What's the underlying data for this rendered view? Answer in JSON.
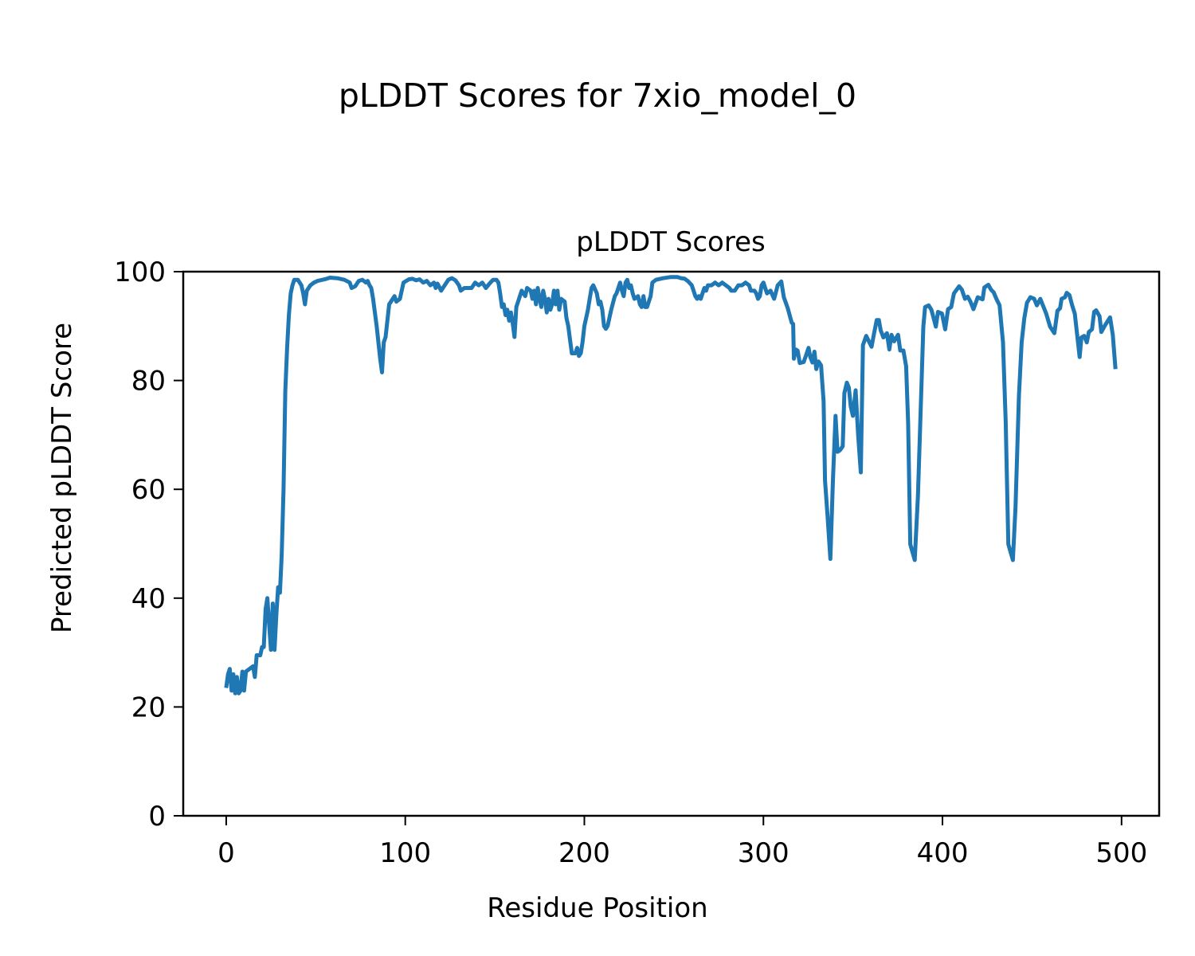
{
  "figure_title": "pLDDT Scores for 7xio_model_0",
  "chart_data": {
    "type": "line",
    "title": "pLDDT Scores",
    "xlabel": "Residue Position",
    "ylabel": "Predicted pLDDT Score",
    "xlim": [
      -24,
      521
    ],
    "ylim": [
      0,
      100
    ],
    "xticks": [
      0,
      100,
      200,
      300,
      400,
      500
    ],
    "yticks": [
      0,
      20,
      40,
      60,
      80,
      100
    ],
    "grid": false,
    "color": "#1f77b4",
    "points": [
      [
        0,
        23.5
      ],
      [
        1,
        26
      ],
      [
        2,
        27
      ],
      [
        3,
        23
      ],
      [
        4,
        26
      ],
      [
        5,
        22.5
      ],
      [
        6,
        25.5
      ],
      [
        7,
        22.5
      ],
      [
        8,
        23
      ],
      [
        9,
        26.5
      ],
      [
        10,
        23
      ],
      [
        11,
        26.5
      ],
      [
        13,
        27
      ],
      [
        15,
        27.5
      ],
      [
        16,
        25.5
      ],
      [
        17,
        29.5
      ],
      [
        19,
        29.5
      ],
      [
        20,
        31
      ],
      [
        21,
        31
      ],
      [
        22,
        38
      ],
      [
        23,
        40
      ],
      [
        24,
        35
      ],
      [
        25,
        30.5
      ],
      [
        26,
        39
      ],
      [
        27,
        30.5
      ],
      [
        28,
        37
      ],
      [
        29,
        42
      ],
      [
        30,
        41
      ],
      [
        31,
        48
      ],
      [
        32,
        60
      ],
      [
        33,
        78
      ],
      [
        34,
        86
      ],
      [
        35,
        92
      ],
      [
        36,
        96
      ],
      [
        37,
        97.5
      ],
      [
        38,
        98.5
      ],
      [
        40,
        98.5
      ],
      [
        42,
        97.5
      ],
      [
        43,
        96
      ],
      [
        44,
        94
      ],
      [
        45,
        96.5
      ],
      [
        47,
        97.5
      ],
      [
        49,
        98
      ],
      [
        51,
        98.3
      ],
      [
        55,
        98.6
      ],
      [
        58,
        98.9
      ],
      [
        62,
        98.8
      ],
      [
        66,
        98.5
      ],
      [
        69,
        98
      ],
      [
        70,
        97
      ],
      [
        72,
        97.3
      ],
      [
        74,
        98.3
      ],
      [
        76,
        98.5
      ],
      [
        78,
        98
      ],
      [
        79,
        98.3
      ],
      [
        80,
        97.5
      ],
      [
        81,
        97
      ],
      [
        82,
        95
      ],
      [
        84,
        90
      ],
      [
        86,
        84
      ],
      [
        87,
        81.5
      ],
      [
        88,
        87
      ],
      [
        89,
        88
      ],
      [
        91,
        94
      ],
      [
        93,
        95
      ],
      [
        94,
        95.5
      ],
      [
        95,
        94.5
      ],
      [
        97,
        95
      ],
      [
        99,
        98
      ],
      [
        102,
        98.6
      ],
      [
        104,
        98.7
      ],
      [
        106,
        98.4
      ],
      [
        108,
        98.6
      ],
      [
        110,
        98
      ],
      [
        112,
        98.3
      ],
      [
        114,
        97.5
      ],
      [
        116,
        98
      ],
      [
        117,
        97
      ],
      [
        118,
        97.8
      ],
      [
        120,
        96.5
      ],
      [
        121,
        97
      ],
      [
        122,
        97.5
      ],
      [
        124,
        98.5
      ],
      [
        126,
        98.8
      ],
      [
        128,
        98.4
      ],
      [
        130,
        97.5
      ],
      [
        131,
        96.5
      ],
      [
        133,
        97
      ],
      [
        135,
        97
      ],
      [
        137,
        97
      ],
      [
        139,
        98
      ],
      [
        141,
        97.5
      ],
      [
        143,
        98
      ],
      [
        145,
        97
      ],
      [
        147,
        97.8
      ],
      [
        149,
        98.5
      ],
      [
        151,
        98.5
      ],
      [
        152,
        98
      ],
      [
        153,
        96
      ],
      [
        154,
        93.5
      ],
      [
        155,
        94
      ],
      [
        156,
        92
      ],
      [
        157,
        93
      ],
      [
        158,
        91
      ],
      [
        159,
        92.5
      ],
      [
        160,
        90.5
      ],
      [
        161,
        88
      ],
      [
        162,
        93.5
      ],
      [
        164,
        95.5
      ],
      [
        165,
        96.5
      ],
      [
        166,
        96
      ],
      [
        167,
        95.5
      ],
      [
        168,
        97
      ],
      [
        170,
        96.5
      ],
      [
        171,
        95
      ],
      [
        172,
        96.5
      ],
      [
        173,
        94
      ],
      [
        174,
        97
      ],
      [
        175,
        95
      ],
      [
        176,
        93.5
      ],
      [
        177,
        96.5
      ],
      [
        178,
        95
      ],
      [
        179,
        92.5
      ],
      [
        180,
        95
      ],
      [
        181,
        93
      ],
      [
        182,
        94
      ],
      [
        183,
        96.5
      ],
      [
        184,
        94
      ],
      [
        185,
        96.5
      ],
      [
        186,
        93
      ],
      [
        187,
        95
      ],
      [
        189,
        94.5
      ],
      [
        190,
        91.5
      ],
      [
        191,
        90
      ],
      [
        192,
        87.5
      ],
      [
        193,
        85
      ],
      [
        195,
        85
      ],
      [
        196,
        86
      ],
      [
        197,
        84.5
      ],
      [
        198,
        85
      ],
      [
        199,
        87
      ],
      [
        200,
        90
      ],
      [
        202,
        93
      ],
      [
        203,
        95
      ],
      [
        204,
        97
      ],
      [
        205,
        97.5
      ],
      [
        207,
        96
      ],
      [
        208,
        94
      ],
      [
        209,
        94.5
      ],
      [
        210,
        93
      ],
      [
        211,
        90
      ],
      [
        212,
        89.5
      ],
      [
        213,
        90
      ],
      [
        215,
        93
      ],
      [
        217,
        95.5
      ],
      [
        218,
        96
      ],
      [
        220,
        98
      ],
      [
        221,
        96.5
      ],
      [
        222,
        95.5
      ],
      [
        223,
        98
      ],
      [
        224,
        98.5
      ],
      [
        225,
        97
      ],
      [
        226,
        97.5
      ],
      [
        227,
        96
      ],
      [
        228,
        95
      ],
      [
        230,
        95.5
      ],
      [
        231,
        94
      ],
      [
        232,
        93.5
      ],
      [
        233,
        95.5
      ],
      [
        234,
        93.5
      ],
      [
        235,
        93.5
      ],
      [
        237,
        95.5
      ],
      [
        238,
        98
      ],
      [
        240,
        98.5
      ],
      [
        244,
        98.8
      ],
      [
        248,
        99
      ],
      [
        252,
        99
      ],
      [
        254,
        98.8
      ],
      [
        256,
        98.7
      ],
      [
        258,
        98.2
      ],
      [
        260,
        97.5
      ],
      [
        261,
        96.5
      ],
      [
        262,
        95.5
      ],
      [
        263,
        95
      ],
      [
        264,
        95.5
      ],
      [
        265,
        95
      ],
      [
        266,
        96
      ],
      [
        267,
        97
      ],
      [
        268,
        96.5
      ],
      [
        269,
        97.5
      ],
      [
        271,
        97.5
      ],
      [
        273,
        98
      ],
      [
        275,
        97.5
      ],
      [
        277,
        98
      ],
      [
        279,
        97.5
      ],
      [
        281,
        97
      ],
      [
        282,
        96.5
      ],
      [
        284,
        96.5
      ],
      [
        286,
        97.5
      ],
      [
        288,
        97.5
      ],
      [
        290,
        98
      ],
      [
        292,
        97.5
      ],
      [
        293,
        96.5
      ],
      [
        295,
        96.5
      ],
      [
        296,
        96
      ],
      [
        297,
        95
      ],
      [
        298,
        95.5
      ],
      [
        299,
        97.5
      ],
      [
        300,
        98
      ],
      [
        301,
        97
      ],
      [
        302,
        96
      ],
      [
        304,
        96.5
      ],
      [
        306,
        95
      ],
      [
        308,
        97.5
      ],
      [
        310,
        98.2
      ],
      [
        311.4,
        95.3
      ],
      [
        313.6,
        93.3
      ],
      [
        315.8,
        90.6
      ],
      [
        316.6,
        90.4
      ],
      [
        317,
        84
      ],
      [
        318.1,
        85.7
      ],
      [
        319.1,
        85.5
      ],
      [
        320.3,
        83.2
      ],
      [
        322.5,
        83.4
      ],
      [
        324,
        84.8
      ],
      [
        325.2,
        86
      ],
      [
        326.2,
        84.3
      ],
      [
        327.4,
        83.3
      ],
      [
        328.5,
        85.3
      ],
      [
        329.5,
        82.1
      ],
      [
        330.7,
        83.5
      ],
      [
        332.2,
        82.8
      ],
      [
        333.6,
        76.2
      ],
      [
        334.4,
        61.6
      ],
      [
        335.9,
        54.8
      ],
      [
        337.4,
        47.2
      ],
      [
        338.8,
        61.6
      ],
      [
        340.3,
        73.5
      ],
      [
        341.4,
        66.9
      ],
      [
        342.8,
        67.2
      ],
      [
        344.3,
        67.9
      ],
      [
        345.2,
        77.7
      ],
      [
        346.6,
        79.6
      ],
      [
        347.7,
        78.7
      ],
      [
        348.8,
        75.2
      ],
      [
        350,
        73.5
      ],
      [
        351.5,
        78.2
      ],
      [
        352.9,
        69.9
      ],
      [
        354.4,
        63.1
      ],
      [
        355.6,
        86.5
      ],
      [
        357.4,
        88.2
      ],
      [
        358.9,
        87.2
      ],
      [
        360.4,
        86.2
      ],
      [
        361.8,
        88.7
      ],
      [
        363.3,
        91.1
      ],
      [
        364.5,
        91.1
      ],
      [
        365.5,
        89.2
      ],
      [
        367,
        87.9
      ],
      [
        369,
        88.7
      ],
      [
        370.3,
        85.7
      ],
      [
        371.5,
        88.4
      ],
      [
        373,
        87.2
      ],
      [
        375.2,
        88.4
      ],
      [
        376.4,
        85.5
      ],
      [
        378.2,
        85.5
      ],
      [
        379.7,
        82.6
      ],
      [
        380.8,
        72.3
      ],
      [
        382,
        49.9
      ],
      [
        384.5,
        47
      ],
      [
        386.3,
        58.7
      ],
      [
        387.8,
        74.3
      ],
      [
        389.3,
        89.9
      ],
      [
        390.3,
        93.5
      ],
      [
        392.3,
        93.8
      ],
      [
        393.8,
        93
      ],
      [
        394.8,
        91.8
      ],
      [
        396.3,
        89.9
      ],
      [
        397.5,
        92.6
      ],
      [
        399.7,
        92.3
      ],
      [
        401.5,
        89.4
      ],
      [
        403.1,
        93.1
      ],
      [
        404.9,
        93.5
      ],
      [
        406.4,
        96
      ],
      [
        409.3,
        97.3
      ],
      [
        410.8,
        96.7
      ],
      [
        412.6,
        95
      ],
      [
        414.1,
        95.4
      ],
      [
        415.6,
        94.5
      ],
      [
        417.3,
        93.1
      ],
      [
        419.7,
        95.3
      ],
      [
        422.4,
        94.9
      ],
      [
        423.4,
        97.1
      ],
      [
        425.6,
        97.6
      ],
      [
        427.1,
        96.7
      ],
      [
        428.6,
        96.2
      ],
      [
        430.1,
        95
      ],
      [
        431.9,
        93.8
      ],
      [
        433.8,
        87
      ],
      [
        435.3,
        72.3
      ],
      [
        436.8,
        49.9
      ],
      [
        439.3,
        47
      ],
      [
        440.8,
        56.7
      ],
      [
        442.7,
        77.2
      ],
      [
        444.2,
        87
      ],
      [
        445.7,
        91.4
      ],
      [
        447.2,
        94.3
      ],
      [
        449.1,
        95.3
      ],
      [
        451.2,
        95
      ],
      [
        452.7,
        93.8
      ],
      [
        454.6,
        95
      ],
      [
        456.1,
        93.8
      ],
      [
        457.9,
        92.3
      ],
      [
        460.1,
        89.9
      ],
      [
        462.5,
        88.7
      ],
      [
        464.2,
        92.8
      ],
      [
        465.7,
        93.3
      ],
      [
        466.5,
        95
      ],
      [
        468.4,
        95.3
      ],
      [
        469.4,
        96.1
      ],
      [
        470.9,
        95.7
      ],
      [
        472.4,
        93.8
      ],
      [
        473.9,
        92.3
      ],
      [
        476.6,
        84.3
      ],
      [
        477.6,
        87.9
      ],
      [
        479.1,
        88.2
      ],
      [
        480.6,
        87
      ],
      [
        481.7,
        88.9
      ],
      [
        483.5,
        89.4
      ],
      [
        484.7,
        92.6
      ],
      [
        485.8,
        92.9
      ],
      [
        487.7,
        91.8
      ],
      [
        488.7,
        88.9
      ],
      [
        490.7,
        90.1
      ],
      [
        493.6,
        91.6
      ],
      [
        495.1,
        88.4
      ],
      [
        496.6,
        82.1
      ]
    ]
  }
}
